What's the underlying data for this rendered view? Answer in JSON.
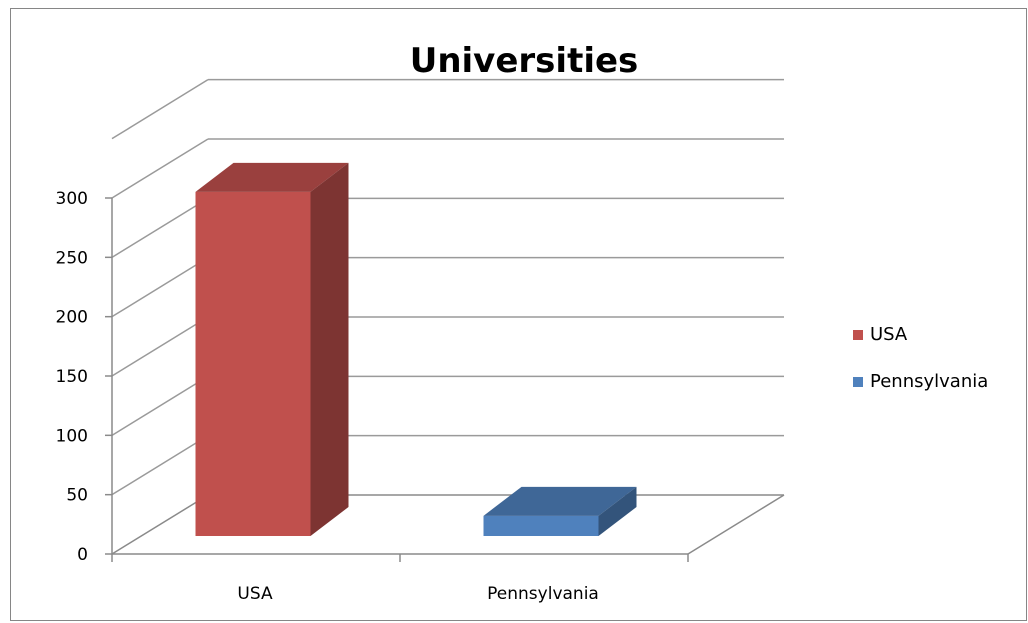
{
  "chart_data": {
    "type": "bar",
    "title": "Universities",
    "categories": [
      "USA",
      "Pennsylvania"
    ],
    "series": [
      {
        "name": "USA",
        "values": [
          290,
          null
        ],
        "color": "#c0504d"
      },
      {
        "name": "Pennsylvania",
        "values": [
          null,
          17
        ],
        "color": "#4f81bd"
      }
    ],
    "yticks": [
      0,
      50,
      100,
      150,
      200,
      250,
      300
    ],
    "ylim": [
      0,
      300
    ],
    "grid": true,
    "legend_position": "right",
    "projection": "3d"
  }
}
